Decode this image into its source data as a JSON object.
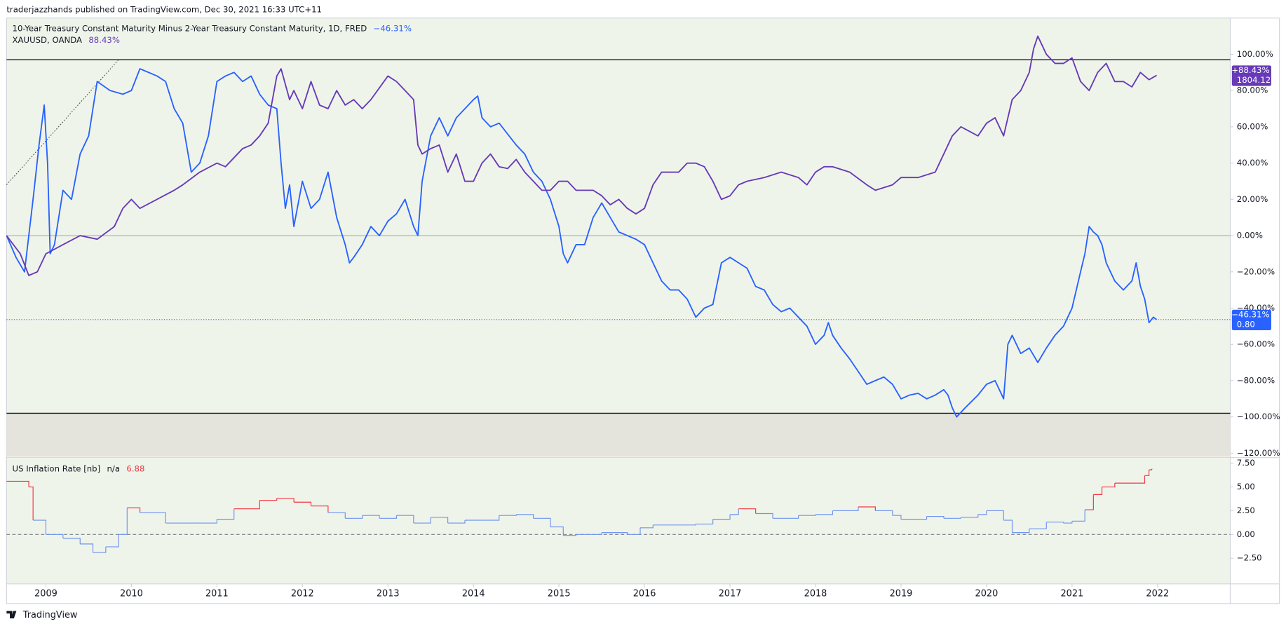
{
  "header": {
    "text": "traderjazzhands published on TradingView.com, Dec 30, 2021 16:33 UTC+11"
  },
  "footer": {
    "text": "TradingView"
  },
  "chart_data": [
    {
      "type": "line",
      "xlim": [
        2008.54,
        2022.85
      ],
      "ylim": [
        -122,
        120
      ],
      "yticks": [
        {
          "value": 100,
          "label": "100.00%"
        },
        {
          "value": 80,
          "label": "80.00%"
        },
        {
          "value": 60,
          "label": "60.00%"
        },
        {
          "value": 40,
          "label": "40.00%"
        },
        {
          "value": 20,
          "label": "20.00%"
        },
        {
          "value": 0,
          "label": "0.00%"
        },
        {
          "value": -20,
          "label": "−20.00%"
        },
        {
          "value": -40,
          "label": "−40.00%"
        },
        {
          "value": -60,
          "label": "−60.00%"
        },
        {
          "value": -80,
          "label": "−80.00%"
        },
        {
          "value": -100,
          "label": "−100.00%"
        },
        {
          "value": -120,
          "label": "−120.00%"
        }
      ],
      "levels": [
        {
          "value": 97,
          "color": "#131722"
        },
        {
          "value": 0,
          "color": "#9598a1"
        },
        {
          "value": -98,
          "color": "#131722",
          "shade_below": "#e4e4dc"
        }
      ],
      "trendline": {
        "x": [
          2008.54,
          2009.85
        ],
        "y": [
          28,
          97
        ]
      },
      "series": [
        {
          "name": "10-Year Treasury Constant Maturity Minus 2-Year Treasury Constant Maturity, 1D, FRED",
          "legend_value": "−46.31%",
          "axis_label": "−46.31%",
          "axis_price": "0.80",
          "color": "#2962ff",
          "price_line": true,
          "x": [
            2008.54,
            2008.65,
            2008.75,
            2008.85,
            2008.92,
            2008.98,
            2009.02,
            2009.05,
            2009.1,
            2009.2,
            2009.3,
            2009.4,
            2009.5,
            2009.6,
            2009.75,
            2009.9,
            2010.0,
            2010.1,
            2010.2,
            2010.3,
            2010.4,
            2010.5,
            2010.6,
            2010.7,
            2010.8,
            2010.9,
            2011.0,
            2011.1,
            2011.2,
            2011.3,
            2011.4,
            2011.5,
            2011.6,
            2011.7,
            2011.75,
            2011.8,
            2011.85,
            2011.9,
            2012.0,
            2012.1,
            2012.2,
            2012.3,
            2012.4,
            2012.5,
            2012.55,
            2012.6,
            2012.7,
            2012.8,
            2012.9,
            2013.0,
            2013.1,
            2013.2,
            2013.3,
            2013.35,
            2013.4,
            2013.5,
            2013.6,
            2013.7,
            2013.8,
            2014.0,
            2014.05,
            2014.1,
            2014.2,
            2014.3,
            2014.5,
            2014.6,
            2014.7,
            2014.8,
            2014.9,
            2015.0,
            2015.05,
            2015.1,
            2015.2,
            2015.3,
            2015.4,
            2015.5,
            2015.6,
            2015.7,
            2015.9,
            2016.0,
            2016.1,
            2016.2,
            2016.3,
            2016.4,
            2016.5,
            2016.6,
            2016.7,
            2016.8,
            2016.9,
            2017.0,
            2017.1,
            2017.2,
            2017.3,
            2017.4,
            2017.5,
            2017.6,
            2017.7,
            2017.8,
            2017.9,
            2018.0,
            2018.1,
            2018.15,
            2018.2,
            2018.3,
            2018.4,
            2018.5,
            2018.6,
            2018.7,
            2018.8,
            2018.9,
            2019.0,
            2019.1,
            2019.2,
            2019.3,
            2019.4,
            2019.5,
            2019.55,
            2019.6,
            2019.65,
            2019.75,
            2019.9,
            2020.0,
            2020.1,
            2020.2,
            2020.25,
            2020.3,
            2020.4,
            2020.5,
            2020.6,
            2020.7,
            2020.8,
            2020.9,
            2021.0,
            2021.1,
            2021.15,
            2021.2,
            2021.25,
            2021.3,
            2021.35,
            2021.4,
            2021.5,
            2021.6,
            2021.7,
            2021.75,
            2021.8,
            2021.85,
            2021.9,
            2021.95,
            2021.99
          ],
          "values": [
            0,
            -12,
            -20,
            20,
            50,
            72,
            40,
            -10,
            -5,
            25,
            20,
            45,
            55,
            85,
            80,
            78,
            80,
            92,
            90,
            88,
            85,
            70,
            62,
            35,
            40,
            55,
            85,
            88,
            90,
            85,
            88,
            78,
            72,
            70,
            40,
            15,
            28,
            5,
            30,
            15,
            20,
            35,
            10,
            -5,
            -15,
            -12,
            -5,
            5,
            0,
            8,
            12,
            20,
            5,
            0,
            30,
            55,
            65,
            55,
            65,
            75,
            77,
            65,
            60,
            62,
            50,
            45,
            35,
            30,
            20,
            5,
            -10,
            -15,
            -5,
            -5,
            10,
            18,
            10,
            2,
            -2,
            -5,
            -15,
            -25,
            -30,
            -30,
            -35,
            -45,
            -40,
            -38,
            -15,
            -12,
            -15,
            -18,
            -28,
            -30,
            -38,
            -42,
            -40,
            -45,
            -50,
            -60,
            -55,
            -48,
            -55,
            -62,
            -68,
            -75,
            -82,
            -80,
            -78,
            -82,
            -90,
            -88,
            -87,
            -90,
            -88,
            -85,
            -88,
            -95,
            -100,
            -95,
            -88,
            -82,
            -80,
            -90,
            -60,
            -55,
            -65,
            -62,
            -70,
            -62,
            -55,
            -50,
            -40,
            -20,
            -10,
            5,
            2,
            0,
            -5,
            -15,
            -25,
            -30,
            -25,
            -15,
            -28,
            -35,
            -48,
            -45,
            -46.31
          ]
        },
        {
          "name": "XAUUSD, OANDA",
          "legend_value": "88.43%",
          "axis_label": "+88.43%",
          "axis_price": "1804.12",
          "color": "#673ab7",
          "x": [
            2008.54,
            2008.7,
            2008.8,
            2008.9,
            2009.0,
            2009.2,
            2009.4,
            2009.6,
            2009.8,
            2009.9,
            2010.0,
            2010.1,
            2010.3,
            2010.5,
            2010.6,
            2010.8,
            2011.0,
            2011.1,
            2011.3,
            2011.4,
            2011.5,
            2011.6,
            2011.7,
            2011.75,
            2011.85,
            2011.9,
            2012.0,
            2012.1,
            2012.2,
            2012.3,
            2012.4,
            2012.5,
            2012.6,
            2012.7,
            2012.8,
            2013.0,
            2013.1,
            2013.2,
            2013.3,
            2013.35,
            2013.4,
            2013.5,
            2013.6,
            2013.7,
            2013.8,
            2013.9,
            2014.0,
            2014.1,
            2014.2,
            2014.3,
            2014.4,
            2014.5,
            2014.6,
            2014.7,
            2014.8,
            2014.9,
            2015.0,
            2015.1,
            2015.2,
            2015.4,
            2015.5,
            2015.6,
            2015.7,
            2015.8,
            2015.9,
            2016.0,
            2016.1,
            2016.2,
            2016.4,
            2016.5,
            2016.6,
            2016.7,
            2016.8,
            2016.9,
            2017.0,
            2017.1,
            2017.2,
            2017.4,
            2017.6,
            2017.8,
            2017.9,
            2018.0,
            2018.1,
            2018.2,
            2018.4,
            2018.6,
            2018.7,
            2018.9,
            2019.0,
            2019.2,
            2019.4,
            2019.5,
            2019.6,
            2019.7,
            2019.9,
            2020.0,
            2020.1,
            2020.2,
            2020.3,
            2020.4,
            2020.5,
            2020.55,
            2020.6,
            2020.7,
            2020.8,
            2020.9,
            2021.0,
            2021.1,
            2021.2,
            2021.3,
            2021.4,
            2021.5,
            2021.6,
            2021.7,
            2021.8,
            2021.9,
            2021.99
          ],
          "values": [
            0,
            -10,
            -22,
            -20,
            -10,
            -5,
            0,
            -2,
            5,
            15,
            20,
            15,
            20,
            25,
            28,
            35,
            40,
            38,
            48,
            50,
            55,
            62,
            88,
            92,
            75,
            80,
            70,
            85,
            72,
            70,
            80,
            72,
            75,
            70,
            75,
            88,
            85,
            80,
            75,
            50,
            45,
            48,
            50,
            35,
            45,
            30,
            30,
            40,
            45,
            38,
            37,
            42,
            35,
            30,
            25,
            25,
            30,
            30,
            25,
            25,
            22,
            17,
            20,
            15,
            12,
            15,
            28,
            35,
            35,
            40,
            40,
            38,
            30,
            20,
            22,
            28,
            30,
            32,
            35,
            32,
            28,
            35,
            38,
            38,
            35,
            28,
            25,
            28,
            32,
            32,
            35,
            45,
            55,
            60,
            55,
            62,
            65,
            55,
            75,
            80,
            90,
            103,
            110,
            100,
            95,
            95,
            98,
            85,
            80,
            90,
            95,
            85,
            85,
            82,
            90,
            86,
            88.43
          ]
        }
      ]
    },
    {
      "type": "step",
      "name": "US Inflation Rate [nb]",
      "legend_status": "n/a",
      "legend_value": "6.88",
      "threshold": 2.5,
      "above_color": "#f23645",
      "below_color": "#6f93f0",
      "legend_value_color": "#f23645",
      "xlim": [
        2008.54,
        2022.85
      ],
      "ylim": [
        -5.2,
        8
      ],
      "yticks": [
        {
          "value": 7.5,
          "label": "7.50"
        },
        {
          "value": 5,
          "label": "5.00"
        },
        {
          "value": 2.5,
          "label": "2.50"
        },
        {
          "value": 0,
          "label": "0.00"
        },
        {
          "value": -2.5,
          "label": "−2.50"
        }
      ],
      "xticks": [
        2009,
        2010,
        2011,
        2012,
        2013,
        2014,
        2015,
        2016,
        2017,
        2018,
        2019,
        2020,
        2021,
        2022
      ],
      "x": [
        2008.54,
        2008.8,
        2008.85,
        2009.0,
        2009.2,
        2009.4,
        2009.55,
        2009.7,
        2009.85,
        2009.95,
        2010.1,
        2010.4,
        2010.8,
        2011.0,
        2011.2,
        2011.5,
        2011.7,
        2011.9,
        2012.1,
        2012.3,
        2012.5,
        2012.7,
        2012.9,
        2013.1,
        2013.3,
        2013.5,
        2013.7,
        2013.9,
        2014.1,
        2014.3,
        2014.5,
        2014.7,
        2014.9,
        2015.05,
        2015.2,
        2015.5,
        2015.8,
        2015.95,
        2016.1,
        2016.3,
        2016.6,
        2016.8,
        2017.0,
        2017.1,
        2017.3,
        2017.5,
        2017.8,
        2018.0,
        2018.2,
        2018.5,
        2018.7,
        2018.9,
        2019.0,
        2019.3,
        2019.5,
        2019.7,
        2019.9,
        2020.0,
        2020.2,
        2020.3,
        2020.5,
        2020.7,
        2020.9,
        2021.0,
        2021.15,
        2021.25,
        2021.35,
        2021.5,
        2021.75,
        2021.85,
        2021.9,
        2021.93
      ],
      "values": [
        5.6,
        5.0,
        1.5,
        0.0,
        -0.4,
        -1.0,
        -1.9,
        -1.3,
        0.0,
        2.8,
        2.3,
        1.2,
        1.2,
        1.6,
        2.7,
        3.6,
        3.8,
        3.4,
        3.0,
        2.3,
        1.7,
        2.0,
        1.7,
        2.0,
        1.2,
        1.8,
        1.2,
        1.5,
        1.5,
        2.0,
        2.1,
        1.7,
        0.8,
        -0.1,
        0.0,
        0.2,
        0.0,
        0.7,
        1.0,
        1.0,
        1.1,
        1.6,
        2.1,
        2.7,
        2.2,
        1.7,
        2.0,
        2.1,
        2.5,
        2.9,
        2.5,
        2.0,
        1.6,
        1.9,
        1.7,
        1.8,
        2.1,
        2.5,
        1.5,
        0.2,
        0.6,
        1.3,
        1.2,
        1.4,
        2.6,
        4.2,
        5.0,
        5.4,
        5.4,
        6.2,
        6.8,
        6.88
      ]
    }
  ]
}
